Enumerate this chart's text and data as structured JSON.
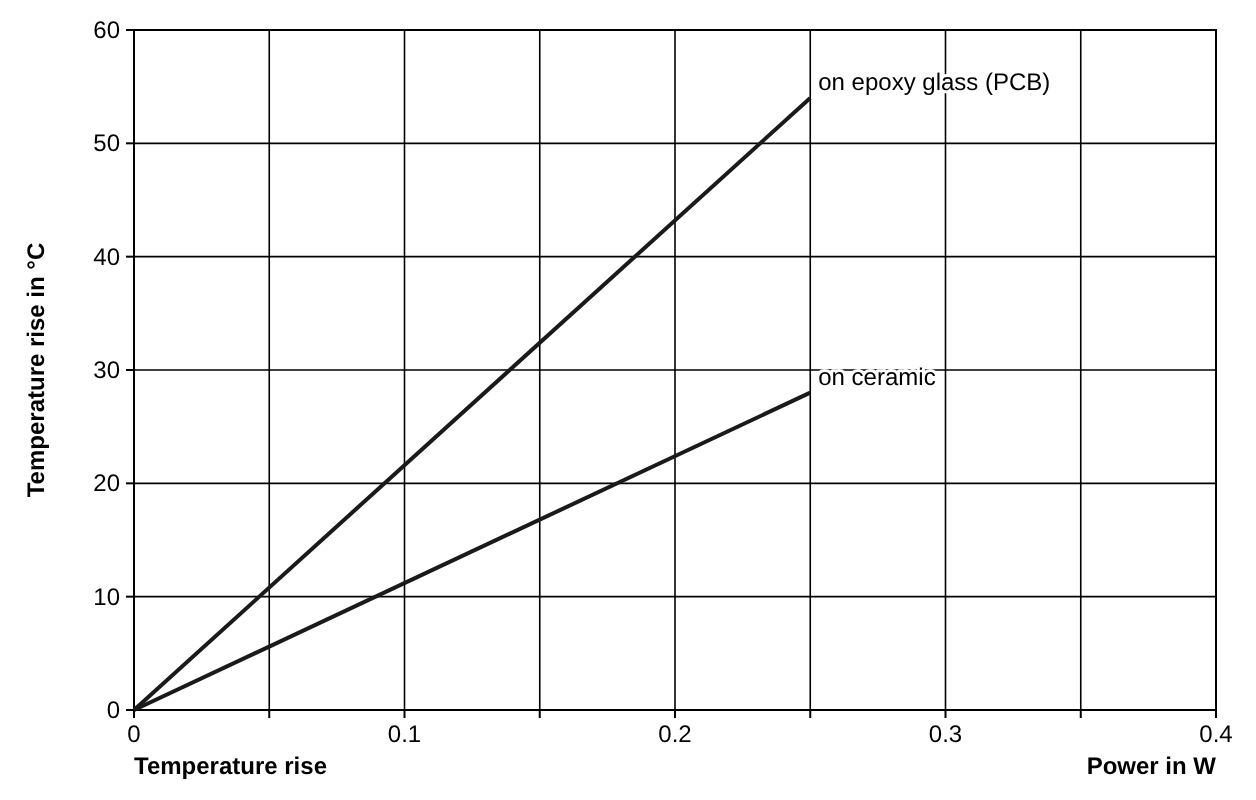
{
  "chart_data": {
    "type": "line",
    "xlabel": "Power in W",
    "ylabel": "Temperature rise in °C",
    "annotations": [
      "Temperature rise"
    ],
    "xlim": [
      0,
      0.4
    ],
    "ylim": [
      0,
      60
    ],
    "xticks": [
      0,
      {
        "value": 0.05,
        "label": null
      },
      0.1,
      {
        "value": 0.15,
        "label": null
      },
      0.2,
      {
        "value": 0.25,
        "label": null
      },
      0.3,
      {
        "value": 0.35,
        "label": null
      },
      0.4
    ],
    "yticks": [
      0,
      10,
      20,
      30,
      40,
      50,
      60
    ],
    "grid": true,
    "legend": false,
    "marker": "none",
    "line_style": "solid",
    "x": [
      0,
      0.25
    ],
    "series": [
      {
        "name": "on epoxy glass (PCB)",
        "color": "#1a1a1a",
        "values": [
          0,
          54
        ]
      },
      {
        "name": "on ceramic",
        "color": "#1a1a1a",
        "values": [
          0,
          28
        ]
      }
    ]
  }
}
